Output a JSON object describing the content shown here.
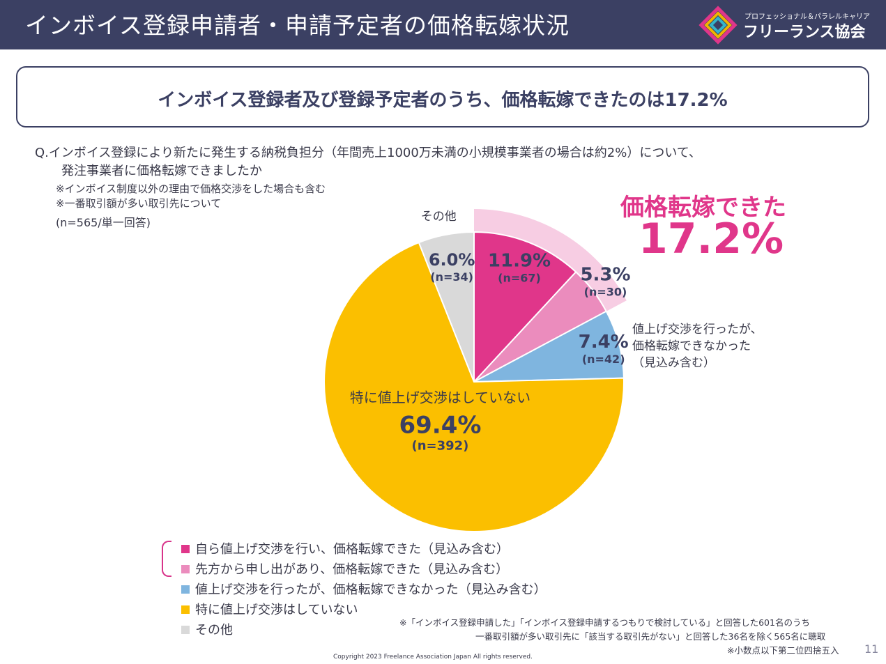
{
  "header": {
    "title": "インボイス登録申請者・申請予定者の価格転嫁状況"
  },
  "logo": {
    "subtitle": "プロフェッショナル＆パラレルキャリア",
    "name": "フリーランス協会"
  },
  "headline": "インボイス登録者及び登録予定者のうち、価格転嫁できたのは17.2%",
  "question": {
    "line1": "Q.インボイス登録により新たに発生する納税負担分（年間売上1000万未満の小規模事業者の場合は約2%）について、",
    "line2": "発注事業者に価格転嫁できましたか",
    "note1": "※インボイス制度以外の理由で価格交渉をした場合も含む",
    "note2": "※一番取引額が多い取引先について",
    "n": "(n=565/単一回答)"
  },
  "highlight": {
    "label": "価格転嫁できた",
    "value": "17.2%"
  },
  "annotation_lines": [
    "値上げ交渉を行ったが、",
    "価格転嫁できなかった",
    "（見込み含む）"
  ],
  "other_label": "その他",
  "pie_inner_label": "特に値上げ交渉はしていない",
  "chart_data": {
    "type": "pie",
    "start": "12 o'clock",
    "direction": "clockwise",
    "slices": [
      {
        "name": "自ら値上げ交渉を行い、価格転嫁できた（見込み含む）",
        "value": 11.9,
        "pct_label": "11.9%",
        "n_label": "(n=67)",
        "color": "#e0368a"
      },
      {
        "name": "先方から申し出があり、価格転嫁できた（見込み含む）",
        "value": 5.3,
        "pct_label": "5.3%",
        "n_label": "(n=30)",
        "color": "#eb8cbd"
      },
      {
        "name": "値上げ交渉を行ったが、価格転嫁できなかった（見込み含む）",
        "value": 7.4,
        "pct_label": "7.4%",
        "n_label": "(n=42)",
        "color": "#7fb5df"
      },
      {
        "name": "特に値上げ交渉はしていない",
        "value": 69.4,
        "pct_label": "69.4%",
        "n_label": "(n=392)",
        "color": "#fbbf00"
      },
      {
        "name": "その他",
        "value": 6.0,
        "pct_label": "6.0%",
        "n_label": "(n=34)",
        "color": "#d9d9d9"
      }
    ],
    "highlight_background_color": "#f7cde3"
  },
  "footnotes": {
    "line1": "※「インボイス登録申請した」「インボイス登録申請するつもりで検討している」と回答した601名のうち",
    "line2": "一番取引額が多い取引先に「該当する取引先がない」と回答した36名を除く565名に聴取",
    "line3": "※小数点以下第二位四捨五入"
  },
  "copyright": "Copyright 2023 Freelance Association Japan  All rights reserved.",
  "page_number": "11"
}
